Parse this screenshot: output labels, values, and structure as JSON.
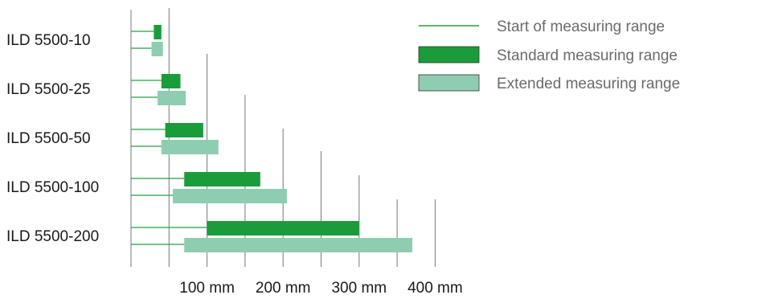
{
  "chart_data": {
    "type": "bar",
    "orientation": "horizontal",
    "unit": "mm",
    "xlim": [
      0,
      400
    ],
    "grid": true,
    "legend_placement": "top-right",
    "x_ticks": [
      {
        "value": 100,
        "label": "100 mm"
      },
      {
        "value": 200,
        "label": "200 mm"
      },
      {
        "value": 300,
        "label": "300 mm"
      },
      {
        "value": 400,
        "label": "400 mm"
      }
    ],
    "gridlines": [
      50,
      100,
      150,
      200,
      250,
      300,
      350,
      400
    ],
    "legend": [
      {
        "name": "Start of measuring range",
        "style": "line"
      },
      {
        "name": "Standard measuring range",
        "style": "bar",
        "color": "#1a9c3a"
      },
      {
        "name": "Extended measuring range",
        "style": "bar",
        "color": "#8fcdb0"
      }
    ],
    "categories": [
      "ILD 5500-10",
      "ILD 5500-25",
      "ILD 5500-50",
      "ILD 5500-100",
      "ILD 5500-200"
    ],
    "series": [
      {
        "name": "Standard measuring range",
        "color": "#1a9c3a",
        "ranges": [
          [
            30,
            40
          ],
          [
            40,
            65
          ],
          [
            45,
            95
          ],
          [
            70,
            170
          ],
          [
            100,
            300
          ]
        ]
      },
      {
        "name": "Extended measuring range",
        "color": "#8fcdb0",
        "ranges": [
          [
            27,
            42
          ],
          [
            35,
            72
          ],
          [
            40,
            115
          ],
          [
            55,
            205
          ],
          [
            70,
            370
          ]
        ]
      }
    ]
  }
}
